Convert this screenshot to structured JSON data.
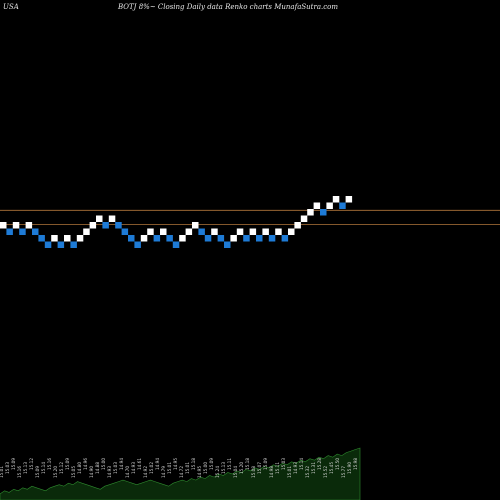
{
  "header": {
    "market": "USA",
    "caption": "BOTJ 8%~  Closing Daily data  Renko  charts MunafaSutra.com"
  },
  "colors": {
    "background": "#000000",
    "up_brick": "#ffffff",
    "down_brick": "#1e7bd6",
    "level_line": "#b0763a",
    "volume_fill": "#0a2a0a",
    "volume_edge": "#2e8b2e",
    "volume_label": "#d8d8d8"
  },
  "chart_data": {
    "type": "renko",
    "bricks": [
      {
        "level": 2,
        "dir": "up"
      },
      {
        "level": 1,
        "dir": "down"
      },
      {
        "level": 2,
        "dir": "up"
      },
      {
        "level": 1,
        "dir": "down"
      },
      {
        "level": 2,
        "dir": "up"
      },
      {
        "level": 1,
        "dir": "down"
      },
      {
        "level": 0,
        "dir": "down"
      },
      {
        "level": -1,
        "dir": "down"
      },
      {
        "level": 0,
        "dir": "up"
      },
      {
        "level": -1,
        "dir": "down"
      },
      {
        "level": 0,
        "dir": "up"
      },
      {
        "level": -1,
        "dir": "down"
      },
      {
        "level": 0,
        "dir": "up"
      },
      {
        "level": 1,
        "dir": "up"
      },
      {
        "level": 2,
        "dir": "up"
      },
      {
        "level": 3,
        "dir": "up"
      },
      {
        "level": 2,
        "dir": "down"
      },
      {
        "level": 3,
        "dir": "up"
      },
      {
        "level": 2,
        "dir": "down"
      },
      {
        "level": 1,
        "dir": "down"
      },
      {
        "level": 0,
        "dir": "down"
      },
      {
        "level": -1,
        "dir": "down"
      },
      {
        "level": 0,
        "dir": "up"
      },
      {
        "level": 1,
        "dir": "up"
      },
      {
        "level": 0,
        "dir": "down"
      },
      {
        "level": 1,
        "dir": "up"
      },
      {
        "level": 0,
        "dir": "down"
      },
      {
        "level": -1,
        "dir": "down"
      },
      {
        "level": 0,
        "dir": "up"
      },
      {
        "level": 1,
        "dir": "up"
      },
      {
        "level": 2,
        "dir": "up"
      },
      {
        "level": 1,
        "dir": "down"
      },
      {
        "level": 0,
        "dir": "down"
      },
      {
        "level": 1,
        "dir": "up"
      },
      {
        "level": 0,
        "dir": "down"
      },
      {
        "level": -1,
        "dir": "down"
      },
      {
        "level": 0,
        "dir": "up"
      },
      {
        "level": 1,
        "dir": "up"
      },
      {
        "level": 0,
        "dir": "down"
      },
      {
        "level": 1,
        "dir": "up"
      },
      {
        "level": 0,
        "dir": "down"
      },
      {
        "level": 1,
        "dir": "up"
      },
      {
        "level": 0,
        "dir": "down"
      },
      {
        "level": 1,
        "dir": "up"
      },
      {
        "level": 0,
        "dir": "down"
      },
      {
        "level": 1,
        "dir": "up"
      },
      {
        "level": 2,
        "dir": "up"
      },
      {
        "level": 3,
        "dir": "up"
      },
      {
        "level": 4,
        "dir": "up"
      },
      {
        "level": 5,
        "dir": "up"
      },
      {
        "level": 4,
        "dir": "down"
      },
      {
        "level": 5,
        "dir": "up"
      },
      {
        "level": 6,
        "dir": "up"
      },
      {
        "level": 5,
        "dir": "down"
      },
      {
        "level": 6,
        "dir": "up"
      }
    ],
    "level_lines": [
      3.8,
      1.6
    ],
    "volume": {
      "bars": [
        4,
        6,
        5,
        7,
        6,
        8,
        7,
        9,
        8,
        7,
        6,
        8,
        9,
        10,
        9,
        11,
        10,
        12,
        11,
        10,
        9,
        8,
        7,
        9,
        10,
        11,
        12,
        13,
        12,
        11,
        10,
        11,
        12,
        13,
        12,
        11,
        10,
        9,
        11,
        12,
        13,
        12,
        14,
        13,
        15,
        14,
        16,
        15,
        17,
        16,
        18,
        17,
        19,
        18,
        20,
        19,
        21,
        20,
        22,
        21,
        23,
        22,
        24,
        23,
        25,
        24,
        26,
        25,
        27,
        26,
        28,
        27,
        29,
        28,
        30,
        29,
        31,
        32,
        33,
        34
      ],
      "labels": [
        "15.01",
        "15.03",
        "15.09",
        "15.16",
        "15.13",
        "15.12",
        "15.09",
        "15.14",
        "15.16",
        "15.20",
        "15.12",
        "15.09",
        "15.05",
        "14.80",
        "14.96",
        "14.90",
        "14.88",
        "15.00",
        "14.93",
        "15.03",
        "14.94",
        "14.70",
        "14.93",
        "14.61",
        "14.92",
        "15.02",
        "14.94",
        "14.79",
        "15.01",
        "14.95",
        "14.72",
        "15.01",
        "15.18",
        "14.95",
        "15.00",
        "15.09",
        "15.24",
        "15.13",
        "15.11",
        "15.04",
        "15.20",
        "15.18",
        "15.08",
        "15.07",
        "15.09",
        "14.98",
        "15.11",
        "15.03",
        "15.01",
        "14.93",
        "15.14",
        "15.32",
        "15.31",
        "15.28",
        "15.52",
        "15.45",
        "15.50",
        "15.77",
        "15.90",
        "15.98"
      ]
    }
  }
}
